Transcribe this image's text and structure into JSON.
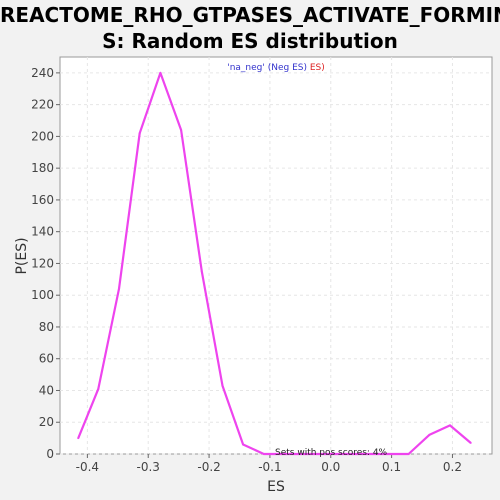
{
  "chart_data": {
    "type": "line",
    "title_line1": "REACTOME_RHO_GTPASES_ACTIVATE_FORMIN",
    "title_line2": "S: Random ES distribution",
    "xlabel": "ES",
    "ylabel": "P(ES)",
    "xlim": [
      -0.445,
      0.265
    ],
    "ylim": [
      0,
      250
    ],
    "x_ticks": [
      -0.4,
      -0.3,
      -0.2,
      -0.1,
      0.0,
      0.1,
      0.2
    ],
    "x_tick_labels": [
      "-0.4",
      "-0.3",
      "-0.2",
      "-0.1",
      "0.0",
      "0.1",
      "0.2"
    ],
    "y_ticks": [
      0,
      20,
      40,
      60,
      80,
      100,
      120,
      140,
      160,
      180,
      200,
      220,
      240
    ],
    "grid": true,
    "legend": {
      "placement": "top-center",
      "part1": "'na_neg' (Neg ES)",
      "part1_color": "#3333cc",
      "part2": " ES)",
      "part2_color": "#dd2222"
    },
    "annotation": "Sets with pos scores: 4%",
    "series": [
      {
        "color": "#ee44ee",
        "x": [
          -0.415,
          -0.382,
          -0.348,
          -0.314,
          -0.28,
          -0.246,
          -0.212,
          -0.178,
          -0.144,
          -0.11,
          -0.076,
          -0.042,
          -0.008,
          0.026,
          0.06,
          0.094,
          0.128,
          0.162,
          0.196,
          0.23
        ],
        "y": [
          10,
          41,
          104,
          202,
          240,
          204,
          115,
          43,
          6,
          0,
          0,
          0,
          0,
          0,
          0,
          0,
          0,
          12,
          18,
          7
        ]
      }
    ]
  }
}
